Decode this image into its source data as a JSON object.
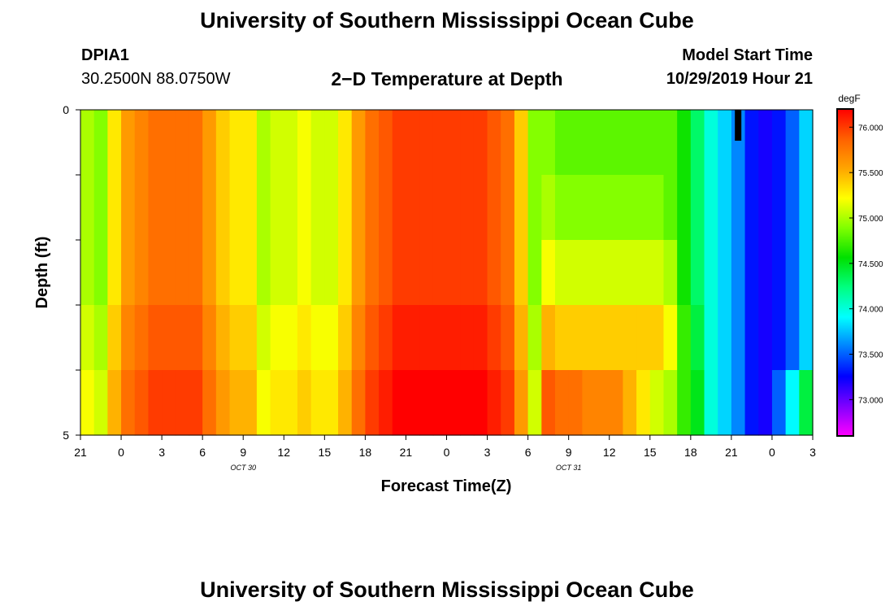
{
  "page": {
    "title_top": "University of Southern Mississippi Ocean Cube",
    "title_bottom": "University of Southern Mississippi Ocean Cube",
    "station_id": "DPIA1",
    "station_coords": "30.2500N 88.0750W",
    "plot_title": "2−D Temperature at Depth",
    "model_label": "Model Start Time",
    "model_time": "10/29/2019 Hour 21"
  },
  "colors": {
    "scale": [
      "#ff00ff",
      "#8000ff",
      "#0000ff",
      "#0080ff",
      "#00ffff",
      "#00ff80",
      "#00e000",
      "#80ff00",
      "#ffff00",
      "#ffa500",
      "#ff6000",
      "#ff0000"
    ],
    "marker": "#000000"
  },
  "chart_data": {
    "type": "heatmap",
    "title": "2−D Temperature at Depth",
    "xlabel": "Forecast Time(Z)",
    "ylabel": "Depth (ft)",
    "units": "degF",
    "x_tick_labels": [
      "21",
      "0",
      "3",
      "6",
      "9",
      "12",
      "15",
      "18",
      "21",
      "0",
      "3",
      "6",
      "9",
      "12",
      "15",
      "18",
      "21",
      "0",
      "3"
    ],
    "date_labels": [
      {
        "text": "OCT 30",
        "at_hour": 12
      },
      {
        "text": "OCT 31",
        "at_hour": 36
      }
    ],
    "x_range_hours": [
      0,
      54
    ],
    "y_range_ft": [
      0,
      5
    ],
    "y_tick_labels": [
      "0",
      "5"
    ],
    "depth_rows": 5,
    "colorbar_ticks": [
      "76.000",
      "75.500",
      "75.000",
      "74.500",
      "74.000",
      "73.500",
      "73.000"
    ],
    "colorbar_tick_values": [
      76.0,
      75.5,
      75.0,
      74.5,
      74.0,
      73.5,
      73.0
    ],
    "value_range": [
      72.6,
      76.2
    ],
    "current_time_marker_hour": 48.5,
    "time_hours": [
      0,
      1,
      2,
      3,
      4,
      5,
      6,
      7,
      8,
      9,
      10,
      11,
      12,
      13,
      14,
      15,
      16,
      17,
      18,
      19,
      20,
      21,
      22,
      23,
      24,
      25,
      26,
      27,
      28,
      29,
      30,
      31,
      32,
      33,
      34,
      35,
      36,
      37,
      38,
      39,
      40,
      41,
      42,
      43,
      44,
      45,
      46,
      47,
      48,
      49,
      50,
      51,
      52,
      53,
      54
    ],
    "surface_profile": [
      75.0,
      74.9,
      75.3,
      75.6,
      75.7,
      75.8,
      75.8,
      75.8,
      75.8,
      75.6,
      75.4,
      75.3,
      75.3,
      75.0,
      75.1,
      75.1,
      75.2,
      75.1,
      75.1,
      75.3,
      75.6,
      75.8,
      75.9,
      76.0,
      76.0,
      76.0,
      76.0,
      76.0,
      76.0,
      76.0,
      75.9,
      75.8,
      75.4,
      74.9,
      74.9,
      74.8,
      74.8,
      74.8,
      74.8,
      74.8,
      74.8,
      74.8,
      74.8,
      74.8,
      74.6,
      74.3,
      74.0,
      73.8,
      73.6,
      73.3,
      73.2,
      73.3,
      73.5,
      73.8,
      74.0
    ],
    "depth_offsets": [
      [
        0,
        0,
        0,
        0,
        0,
        0,
        0,
        0,
        0,
        0,
        0,
        0,
        0,
        0,
        0,
        0,
        0,
        0,
        0,
        0,
        0,
        0,
        0,
        0,
        0,
        0,
        0,
        0,
        0,
        0,
        0,
        0,
        0,
        0,
        0,
        0,
        0,
        0,
        0,
        0,
        0,
        0,
        0,
        0,
        0,
        0,
        0,
        0,
        0,
        0,
        0,
        0,
        0,
        0,
        0
      ],
      [
        0,
        0,
        0,
        0,
        0,
        0,
        0,
        0,
        0,
        0,
        0,
        0,
        0,
        0,
        0,
        0,
        0,
        0,
        0,
        0,
        0,
        0,
        0,
        0,
        0,
        0,
        0,
        0,
        0,
        0,
        0,
        0,
        0,
        0,
        0.1,
        0.1,
        0.1,
        0.1,
        0.1,
        0.1,
        0.1,
        0.1,
        0.1,
        0,
        0,
        0,
        0,
        0,
        0,
        0,
        0,
        0,
        0,
        0,
        0
      ],
      [
        0,
        0,
        0,
        0,
        0,
        0,
        0,
        0,
        0,
        0,
        0,
        0,
        0,
        0,
        0,
        0,
        0,
        0,
        0,
        0,
        0,
        0,
        0,
        0,
        0,
        0,
        0,
        0,
        0,
        0,
        0,
        0,
        0,
        0,
        0.3,
        0.3,
        0.3,
        0.3,
        0.3,
        0.3,
        0.3,
        0.3,
        0.3,
        0.2,
        0,
        0,
        0,
        0,
        0,
        0,
        0,
        0,
        0,
        0,
        0
      ],
      [
        0.1,
        0.1,
        0.1,
        0.1,
        0.1,
        0.1,
        0.1,
        0.1,
        0.1,
        0.1,
        0.1,
        0.1,
        0.1,
        0.1,
        0.1,
        0.1,
        0.1,
        0.1,
        0.1,
        0.1,
        0.1,
        0.1,
        0.1,
        0.1,
        0.1,
        0.1,
        0.1,
        0.1,
        0.1,
        0.1,
        0.1,
        0.1,
        0.1,
        0.1,
        0.6,
        0.6,
        0.6,
        0.6,
        0.6,
        0.6,
        0.6,
        0.6,
        0.6,
        0.4,
        0.1,
        0.1,
        0,
        0,
        0,
        0,
        0,
        0,
        0,
        0,
        0
      ],
      [
        0.2,
        0.2,
        0.2,
        0.2,
        0.2,
        0.2,
        0.2,
        0.2,
        0.2,
        0.2,
        0.2,
        0.2,
        0.2,
        0.2,
        0.2,
        0.2,
        0.2,
        0.2,
        0.2,
        0.2,
        0.2,
        0.2,
        0.2,
        0.2,
        0.2,
        0.2,
        0.2,
        0.2,
        0.2,
        0.2,
        0.2,
        0.2,
        0.2,
        0.2,
        1.0,
        1.0,
        1.0,
        0.9,
        0.9,
        0.9,
        0.7,
        0.5,
        0.3,
        0.2,
        0.1,
        0.2,
        0,
        0,
        0,
        0,
        0,
        0.2,
        0.4,
        0.6,
        0.8
      ]
    ]
  }
}
